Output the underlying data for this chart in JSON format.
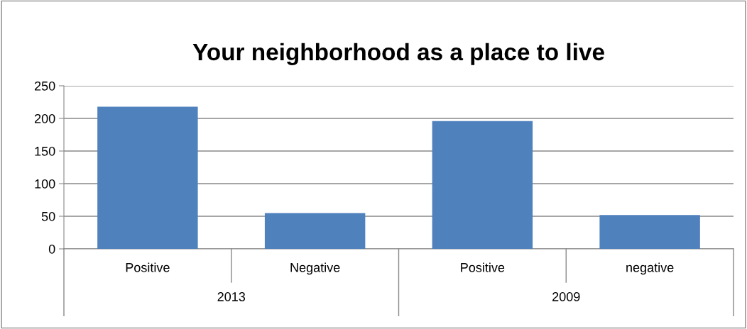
{
  "chart_data": {
    "type": "bar",
    "title": "Your neighborhood as a place to live",
    "categories": [
      "Positive",
      "Negative",
      "Positive",
      "negative"
    ],
    "values": [
      218,
      55,
      196,
      52
    ],
    "color": "#4f81bd",
    "ylim": [
      0,
      250
    ],
    "yticks": [
      0,
      50,
      100,
      150,
      200,
      250
    ],
    "grid": "y",
    "legend": false,
    "annotations": [
      "2013",
      "2009"
    ]
  }
}
